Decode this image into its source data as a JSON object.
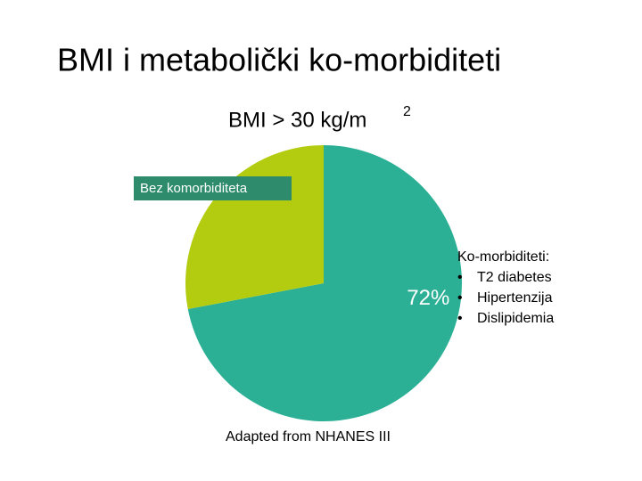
{
  "chart_data": {
    "type": "pie",
    "title": "BMI i metabolički ko-morbiditeti",
    "subtitle": "BMI > 30 kg/m",
    "subtitle_superscript": "2",
    "categories": [
      "Ko-morbiditeti:",
      "Bez komorbiditeta"
    ],
    "values": [
      72,
      28
    ],
    "value_labels": [
      "72%",
      null
    ],
    "colors": [
      "#2bb095",
      "#b3cc10"
    ],
    "comorbidities": [
      "T2 diabetes",
      "Hipertenzija",
      "Dislipidemia"
    ],
    "source": "Adapted from NHANES III"
  }
}
